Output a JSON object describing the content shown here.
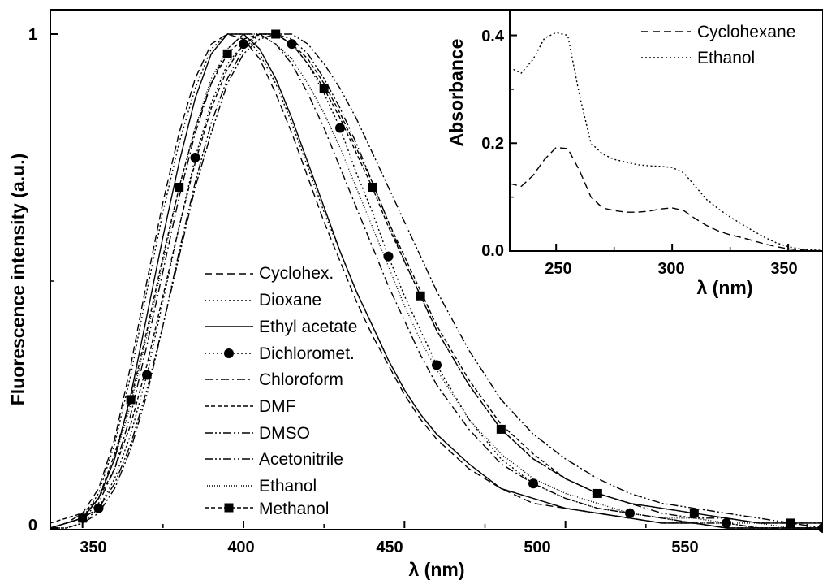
{
  "chart_data": [
    {
      "type": "line",
      "xlabel": "λ (nm)",
      "ylabel": "Fluorescence intensity (a.u.)",
      "xlim": [
        340,
        580
      ],
      "ylim": [
        0,
        1
      ],
      "x_ticks": [
        "350",
        "400",
        "450",
        "500",
        "550"
      ],
      "y_ticks": [
        "0",
        "1"
      ],
      "legend_position": "center-left",
      "x": [
        340,
        345,
        350,
        355,
        360,
        365,
        370,
        375,
        380,
        385,
        390,
        395,
        400,
        405,
        410,
        415,
        420,
        425,
        430,
        435,
        440,
        445,
        450,
        455,
        460,
        470,
        480,
        490,
        500,
        510,
        520,
        530,
        540,
        550,
        560,
        570,
        580
      ],
      "series": [
        {
          "name": "Cyclohex.",
          "dash": "dashed",
          "marker": "none",
          "values": [
            0.0,
            0.01,
            0.03,
            0.08,
            0.18,
            0.33,
            0.5,
            0.66,
            0.8,
            0.91,
            0.98,
            1.0,
            0.99,
            0.95,
            0.88,
            0.8,
            0.71,
            0.62,
            0.54,
            0.46,
            0.39,
            0.33,
            0.27,
            0.22,
            0.18,
            0.12,
            0.08,
            0.05,
            0.04,
            0.03,
            0.02,
            0.01,
            0.01,
            0.0,
            0.0,
            0.0,
            0.0
          ]
        },
        {
          "name": "Dioxane",
          "dash": "dotted",
          "marker": "none",
          "values": [
            0.0,
            0.01,
            0.02,
            0.07,
            0.17,
            0.31,
            0.48,
            0.64,
            0.78,
            0.89,
            0.97,
            1.0,
            1.0,
            0.96,
            0.9,
            0.82,
            0.73,
            0.64,
            0.56,
            0.48,
            0.41,
            0.34,
            0.28,
            0.23,
            0.19,
            0.13,
            0.08,
            0.06,
            0.04,
            0.03,
            0.02,
            0.01,
            0.01,
            0.0,
            0.0,
            0.0,
            0.0
          ]
        },
        {
          "name": "Ethyl acetate",
          "dash": "solid",
          "marker": "none",
          "values": [
            0.0,
            0.01,
            0.02,
            0.06,
            0.14,
            0.27,
            0.43,
            0.59,
            0.74,
            0.87,
            0.96,
            1.0,
            1.0,
            0.97,
            0.91,
            0.83,
            0.74,
            0.65,
            0.56,
            0.48,
            0.41,
            0.34,
            0.28,
            0.23,
            0.19,
            0.13,
            0.08,
            0.06,
            0.04,
            0.03,
            0.02,
            0.01,
            0.01,
            0.0,
            0.0,
            0.0,
            0.0
          ]
        },
        {
          "name": "Dichloromet.",
          "dash": "dotted",
          "marker": "circle",
          "values": [
            0.0,
            0.0,
            0.01,
            0.04,
            0.1,
            0.19,
            0.31,
            0.46,
            0.61,
            0.75,
            0.86,
            0.94,
            0.98,
            1.0,
            1.0,
            0.98,
            0.94,
            0.88,
            0.81,
            0.72,
            0.64,
            0.55,
            0.47,
            0.4,
            0.33,
            0.22,
            0.14,
            0.09,
            0.06,
            0.04,
            0.03,
            0.02,
            0.01,
            0.01,
            0.0,
            0.0,
            0.0
          ]
        },
        {
          "name": "Chloroform",
          "dash": "dashdot",
          "marker": "none",
          "values": [
            0.0,
            0.01,
            0.02,
            0.05,
            0.12,
            0.23,
            0.37,
            0.52,
            0.67,
            0.8,
            0.9,
            0.97,
            1.0,
            1.0,
            0.98,
            0.94,
            0.88,
            0.81,
            0.73,
            0.65,
            0.57,
            0.49,
            0.42,
            0.35,
            0.29,
            0.2,
            0.13,
            0.09,
            0.06,
            0.04,
            0.03,
            0.02,
            0.01,
            0.01,
            0.0,
            0.0,
            0.0
          ]
        },
        {
          "name": "DMF",
          "dash": "shortdash",
          "marker": "none",
          "values": [
            0.01,
            0.02,
            0.03,
            0.06,
            0.12,
            0.21,
            0.33,
            0.47,
            0.61,
            0.74,
            0.85,
            0.93,
            0.98,
            1.0,
            1.0,
            0.98,
            0.95,
            0.9,
            0.84,
            0.77,
            0.7,
            0.62,
            0.55,
            0.48,
            0.41,
            0.3,
            0.21,
            0.15,
            0.1,
            0.07,
            0.05,
            0.04,
            0.03,
            0.02,
            0.01,
            0.01,
            0.01
          ]
        },
        {
          "name": "DMSO",
          "dash": "dashdotdot",
          "marker": "none",
          "values": [
            0.0,
            0.01,
            0.02,
            0.04,
            0.09,
            0.17,
            0.28,
            0.41,
            0.55,
            0.69,
            0.8,
            0.9,
            0.96,
            0.99,
            1.0,
            1.0,
            0.98,
            0.94,
            0.89,
            0.83,
            0.76,
            0.69,
            0.62,
            0.55,
            0.48,
            0.36,
            0.26,
            0.19,
            0.14,
            0.1,
            0.07,
            0.05,
            0.04,
            0.03,
            0.02,
            0.01,
            0.01
          ]
        },
        {
          "name": "Acetonitrile",
          "dash": "dashdotdot",
          "marker": "none",
          "values": [
            0.0,
            0.0,
            0.01,
            0.03,
            0.08,
            0.16,
            0.27,
            0.41,
            0.56,
            0.7,
            0.82,
            0.91,
            0.97,
            1.0,
            1.0,
            0.99,
            0.96,
            0.91,
            0.85,
            0.78,
            0.7,
            0.62,
            0.54,
            0.47,
            0.4,
            0.29,
            0.2,
            0.14,
            0.1,
            0.07,
            0.05,
            0.03,
            0.02,
            0.02,
            0.01,
            0.01,
            0.0
          ]
        },
        {
          "name": "Ethanol",
          "dash": "fine",
          "marker": "none",
          "values": [
            0.0,
            0.01,
            0.02,
            0.06,
            0.14,
            0.25,
            0.39,
            0.54,
            0.69,
            0.81,
            0.91,
            0.97,
            1.0,
            1.0,
            0.98,
            0.95,
            0.9,
            0.84,
            0.77,
            0.69,
            0.61,
            0.53,
            0.45,
            0.38,
            0.32,
            0.22,
            0.15,
            0.1,
            0.07,
            0.05,
            0.03,
            0.02,
            0.02,
            0.01,
            0.01,
            0.0,
            0.0
          ]
        },
        {
          "name": "Methanol",
          "dash": "shortdash",
          "marker": "square",
          "values": [
            0.0,
            0.01,
            0.02,
            0.06,
            0.15,
            0.26,
            0.4,
            0.55,
            0.69,
            0.81,
            0.9,
            0.96,
            0.99,
            1.0,
            1.0,
            0.98,
            0.94,
            0.89,
            0.83,
            0.76,
            0.69,
            0.61,
            0.54,
            0.47,
            0.4,
            0.29,
            0.2,
            0.14,
            0.1,
            0.07,
            0.05,
            0.04,
            0.03,
            0.02,
            0.01,
            0.01,
            0.01
          ]
        }
      ]
    },
    {
      "type": "line",
      "xlabel": "λ (nm)",
      "ylabel": "Absorbance",
      "xlim": [
        230,
        365
      ],
      "ylim": [
        0,
        0.44
      ],
      "x_ticks": [
        "250",
        "300",
        "350"
      ],
      "y_ticks": [
        "0.0",
        "0.2",
        "0.4"
      ],
      "legend_position": "top-right",
      "x": [
        230,
        235,
        240,
        245,
        250,
        255,
        260,
        265,
        270,
        275,
        280,
        285,
        290,
        295,
        300,
        305,
        310,
        315,
        320,
        325,
        330,
        335,
        340,
        345,
        350,
        355,
        360,
        365
      ],
      "series": [
        {
          "name": "Cyclohexane",
          "dash": "dashed",
          "values": [
            0.125,
            0.12,
            0.14,
            0.17,
            0.192,
            0.19,
            0.15,
            0.1,
            0.08,
            0.075,
            0.072,
            0.072,
            0.074,
            0.078,
            0.08,
            0.075,
            0.06,
            0.047,
            0.037,
            0.03,
            0.025,
            0.019,
            0.013,
            0.008,
            0.004,
            0.002,
            0.001,
            0.0
          ]
        },
        {
          "name": "Ethanol",
          "dash": "dotted",
          "values": [
            0.34,
            0.33,
            0.355,
            0.395,
            0.405,
            0.4,
            0.29,
            0.2,
            0.18,
            0.17,
            0.165,
            0.16,
            0.158,
            0.157,
            0.155,
            0.145,
            0.12,
            0.095,
            0.078,
            0.063,
            0.05,
            0.037,
            0.025,
            0.015,
            0.008,
            0.004,
            0.002,
            0.001
          ]
        }
      ]
    }
  ]
}
